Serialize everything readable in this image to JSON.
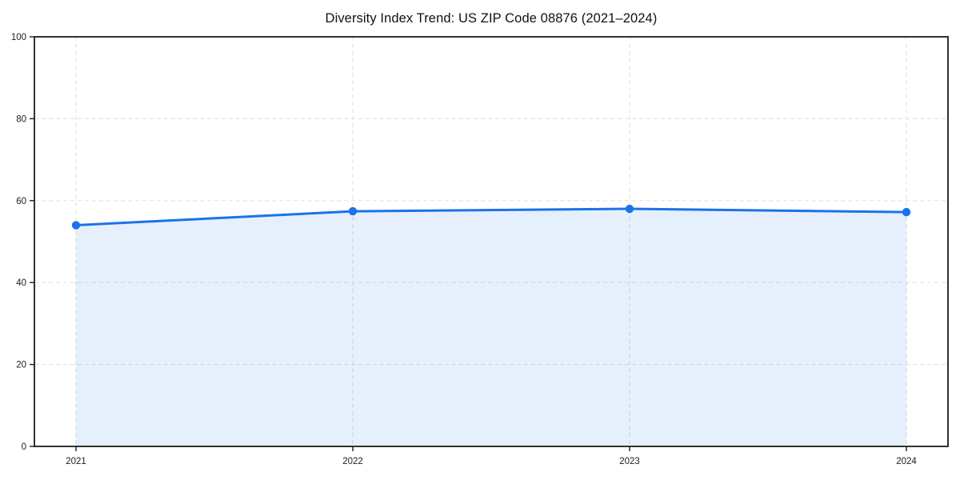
{
  "chart_data": {
    "type": "area",
    "title": "Diversity Index Trend: US ZIP Code 08876 (2021–2024)",
    "x": [
      "2021",
      "2022",
      "2023",
      "2024"
    ],
    "series": [
      {
        "name": "Diversity Index",
        "values": [
          54.0,
          57.4,
          58.0,
          57.2
        ]
      }
    ],
    "xlabel": "",
    "ylabel": "",
    "ylim": [
      0,
      100
    ],
    "yticks": [
      0,
      20,
      40,
      60,
      80,
      100
    ],
    "grid": true,
    "grid_style": "dashed",
    "legend": false,
    "colors": {
      "line": "#1a73e8",
      "marker": "#1a73e8",
      "area_fill": "rgba(26,115,232,0.11)",
      "gridline": "#e2e2e2",
      "spine": "#1c1c1c",
      "tick_label": "#1c1c1c",
      "title": "#111111"
    }
  }
}
